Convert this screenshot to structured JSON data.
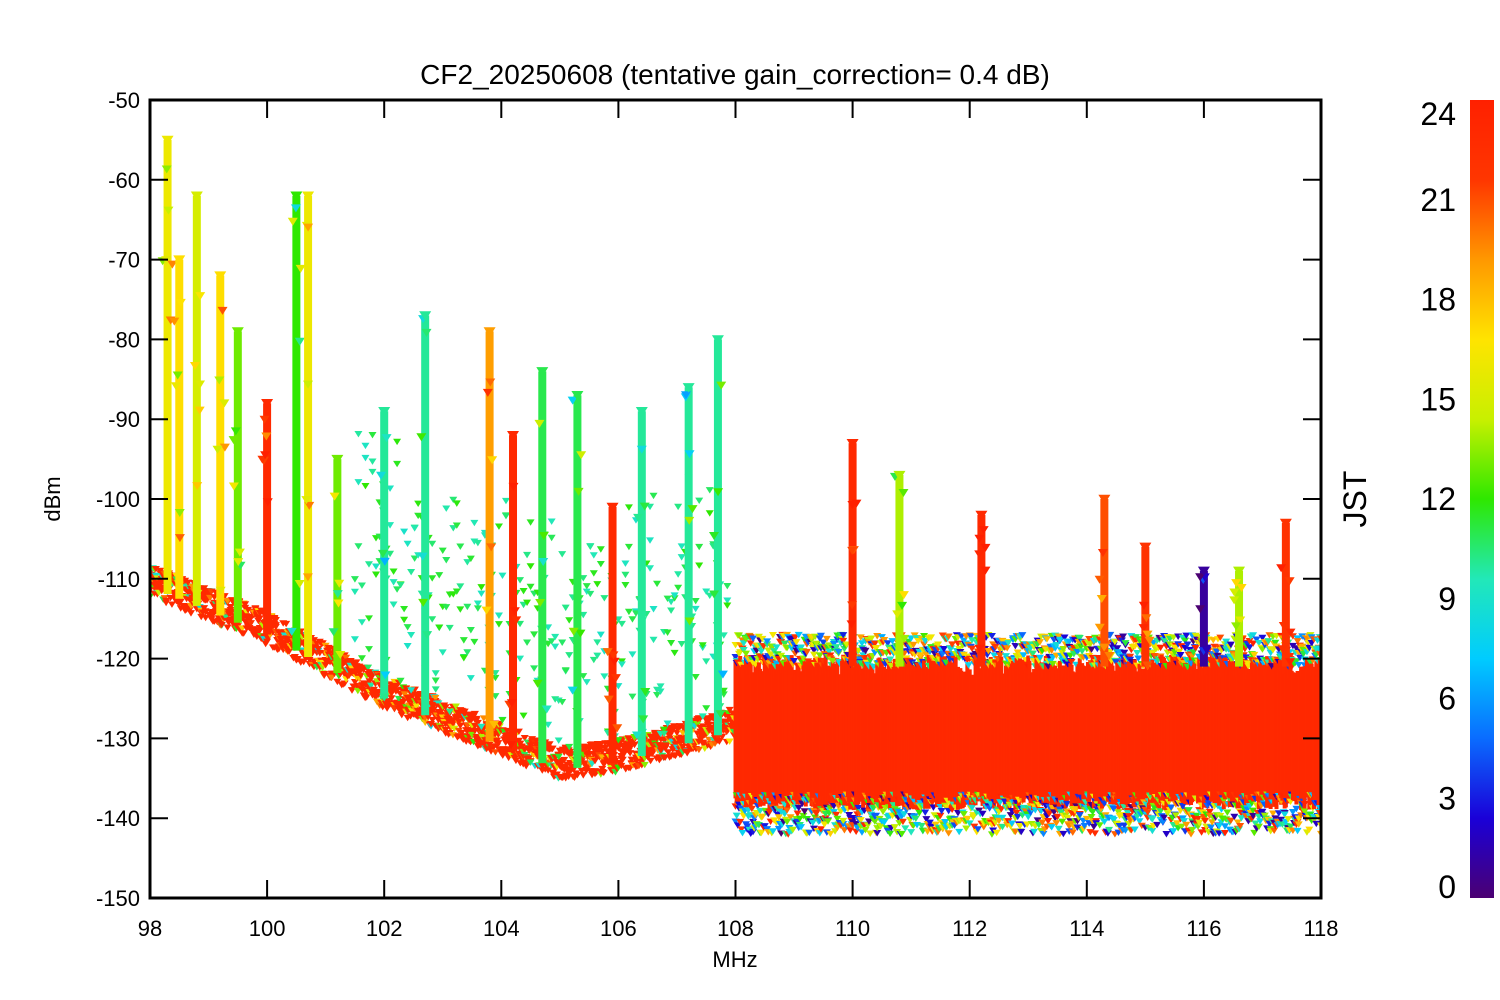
{
  "chart_data": {
    "type": "scatter",
    "title": "CF2_20250608 (tentative gain_correction=  0.4 dB)",
    "xlabel": "MHz",
    "ylabel": "dBm",
    "xlim": [
      98,
      118
    ],
    "ylim": [
      -150,
      -50
    ],
    "x_ticks": [
      "98",
      "100",
      "102",
      "104",
      "106",
      "108",
      "110",
      "112",
      "114",
      "116",
      "118"
    ],
    "y_ticks": [
      "-50",
      "-60",
      "-70",
      "-80",
      "-90",
      "-100",
      "-110",
      "-120",
      "-130",
      "-140",
      "-150"
    ],
    "grid": false,
    "marker": "down-triangle",
    "colorbar": {
      "label": "JST",
      "range": [
        0,
        24
      ],
      "ticks": [
        "0",
        "3",
        "6",
        "9",
        "12",
        "15",
        "18",
        "21",
        "24"
      ],
      "colormap": "rainbow",
      "colors": [
        "#4b0072",
        "#1a00d8",
        "#0a6cff",
        "#00ccff",
        "#22e8b8",
        "#2ee800",
        "#c8f000",
        "#ffe400",
        "#ff9800",
        "#ff3600",
        "#ff2000"
      ]
    },
    "noise_floor": [
      {
        "mhz": 98,
        "dbm": -111
      },
      {
        "mhz": 100,
        "dbm": -117
      },
      {
        "mhz": 102,
        "dbm": -125
      },
      {
        "mhz": 104,
        "dbm": -131
      },
      {
        "mhz": 105,
        "dbm": -134
      },
      {
        "mhz": 106,
        "dbm": -133
      },
      {
        "mhz": 107,
        "dbm": -131
      },
      {
        "mhz": 108,
        "dbm": -129
      },
      {
        "mhz": 110,
        "dbm": -130
      },
      {
        "mhz": 112,
        "dbm": -130
      },
      {
        "mhz": 114,
        "dbm": -130
      },
      {
        "mhz": 116,
        "dbm": -130
      },
      {
        "mhz": 118,
        "dbm": -130
      }
    ],
    "band_above_108": {
      "x_start": 108,
      "x_end": 118,
      "top_dbm": -121,
      "bottom_dbm": -137
    },
    "signals": [
      {
        "mhz": 98.3,
        "peak_dbm": -55,
        "jst": 16
      },
      {
        "mhz": 98.5,
        "peak_dbm": -70,
        "jst": 17
      },
      {
        "mhz": 98.8,
        "peak_dbm": -62,
        "jst": 15
      },
      {
        "mhz": 99.2,
        "peak_dbm": -72,
        "jst": 17
      },
      {
        "mhz": 99.5,
        "peak_dbm": -79,
        "jst": 13
      },
      {
        "mhz": 100.0,
        "peak_dbm": -88,
        "jst": 23
      },
      {
        "mhz": 100.5,
        "peak_dbm": -62,
        "jst": 12
      },
      {
        "mhz": 100.7,
        "peak_dbm": -62,
        "jst": 16
      },
      {
        "mhz": 101.2,
        "peak_dbm": -95,
        "jst": 13
      },
      {
        "mhz": 102.0,
        "peak_dbm": -89,
        "jst": 10
      },
      {
        "mhz": 102.7,
        "peak_dbm": -77,
        "jst": 10
      },
      {
        "mhz": 103.8,
        "peak_dbm": -79,
        "jst": 19
      },
      {
        "mhz": 104.2,
        "peak_dbm": -92,
        "jst": 23
      },
      {
        "mhz": 104.7,
        "peak_dbm": -84,
        "jst": 11
      },
      {
        "mhz": 105.3,
        "peak_dbm": -87,
        "jst": 11
      },
      {
        "mhz": 105.9,
        "peak_dbm": -101,
        "jst": 23
      },
      {
        "mhz": 106.4,
        "peak_dbm": -89,
        "jst": 10
      },
      {
        "mhz": 107.2,
        "peak_dbm": -86,
        "jst": 10
      },
      {
        "mhz": 107.7,
        "peak_dbm": -80,
        "jst": 10
      },
      {
        "mhz": 110.0,
        "peak_dbm": -93,
        "jst": 23
      },
      {
        "mhz": 110.8,
        "peak_dbm": -97,
        "jst": 14
      },
      {
        "mhz": 112.2,
        "peak_dbm": -102,
        "jst": 23
      },
      {
        "mhz": 114.3,
        "peak_dbm": -100,
        "jst": 21
      },
      {
        "mhz": 115.0,
        "peak_dbm": -106,
        "jst": 22
      },
      {
        "mhz": 116.0,
        "peak_dbm": -109,
        "jst": 1
      },
      {
        "mhz": 116.6,
        "peak_dbm": -109,
        "jst": 14
      },
      {
        "mhz": 117.4,
        "peak_dbm": -103,
        "jst": 22
      }
    ]
  }
}
